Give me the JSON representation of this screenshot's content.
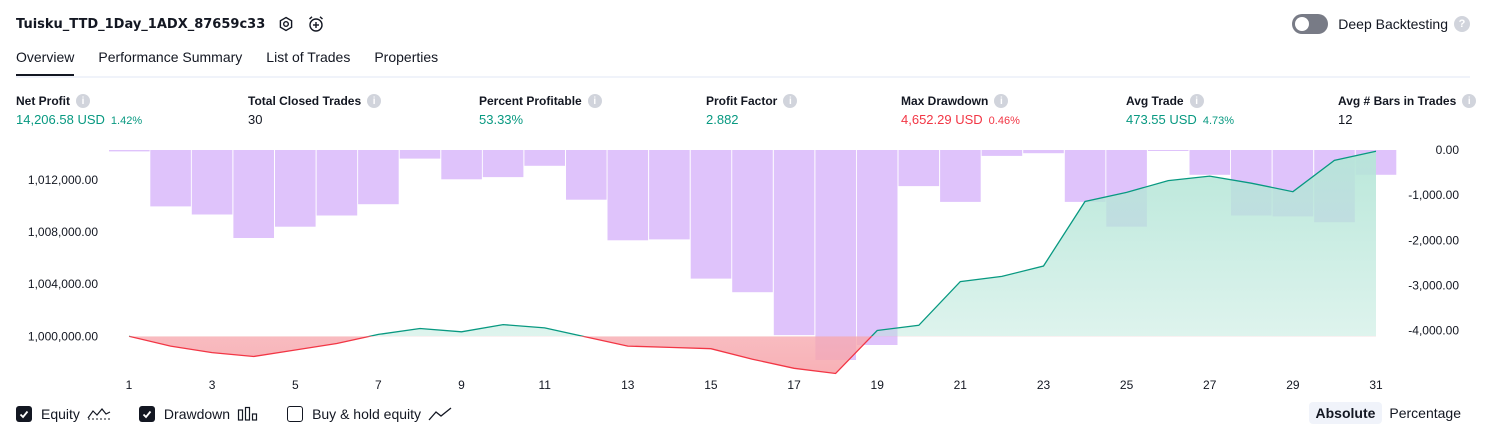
{
  "header": {
    "title": "Tuisku_TTD_1Day_1ADX_87659c33",
    "settings_icon": "gear-icon",
    "alert_icon": "alarm-clock-plus-icon"
  },
  "deep_backtesting": {
    "label": "Deep Backtesting",
    "enabled": false
  },
  "tabs": [
    {
      "label": "Overview",
      "active": true
    },
    {
      "label": "Performance Summary",
      "active": false
    },
    {
      "label": "List of Trades",
      "active": false
    },
    {
      "label": "Properties",
      "active": false
    }
  ],
  "metrics": {
    "net_profit": {
      "label": "Net Profit",
      "value": "14,206.58 USD",
      "pct": "1.42%"
    },
    "closed_trades": {
      "label": "Total Closed Trades",
      "value": "30"
    },
    "percent_profitable": {
      "label": "Percent Profitable",
      "value": "53.33%"
    },
    "profit_factor": {
      "label": "Profit Factor",
      "value": "2.882"
    },
    "max_drawdown": {
      "label": "Max Drawdown",
      "value": "4,652.29 USD",
      "pct": "0.46%"
    },
    "avg_trade": {
      "label": "Avg Trade",
      "value": "473.55 USD",
      "pct": "4.73%"
    },
    "avg_bars": {
      "label": "Avg # Bars in Trades",
      "value": "12"
    }
  },
  "colors": {
    "positive": "#089981",
    "negative": "#f23645",
    "drawdown_bar": "#d9b8fa",
    "equity_fill_positive": "#c8ebe1",
    "equity_fill_negative": "#fbd4d6"
  },
  "chart_data": {
    "type": "line",
    "x": [
      1,
      2,
      3,
      4,
      5,
      6,
      7,
      8,
      9,
      10,
      11,
      12,
      13,
      14,
      15,
      16,
      17,
      18,
      19,
      20,
      21,
      22,
      23,
      24,
      25,
      26,
      27,
      28,
      29,
      30,
      31
    ],
    "x_ticks": [
      "1",
      "3",
      "5",
      "7",
      "9",
      "11",
      "13",
      "15",
      "17",
      "19",
      "21",
      "23",
      "25",
      "27",
      "29",
      "31"
    ],
    "left_axis": {
      "ticks": [
        1000000,
        1004000,
        1008000,
        1012000
      ],
      "tick_labels": [
        "1,000,000.00",
        "1,004,000.00",
        "1,008,000.00",
        "1,012,000.00"
      ],
      "range": [
        996650,
        1014300
      ]
    },
    "right_axis": {
      "ticks": [
        0,
        -1000,
        -2000,
        -3000,
        -4000
      ],
      "tick_labels": [
        "0.00",
        "-1,000.00",
        "-2,000.00",
        "-3,000.00",
        "-4,000.00"
      ],
      "range": [
        -4652.29,
        0
      ]
    },
    "baseline": 1000000,
    "series": [
      {
        "name": "Equity",
        "type": "line-area",
        "axis": "left",
        "values": [
          1000000,
          999250,
          998750,
          998450,
          998950,
          999450,
          1000150,
          1000600,
          1000350,
          1000900,
          1000650,
          999950,
          999250,
          999150,
          999050,
          998250,
          997550,
          997150,
          1000450,
          1000850,
          1004200,
          1004600,
          1005400,
          1010350,
          1011050,
          1011950,
          1012300,
          1011750,
          1011100,
          1013500,
          1014200
        ]
      },
      {
        "name": "Drawdown",
        "type": "bar",
        "axis": "right",
        "values": [
          -30,
          -1250,
          -1430,
          -1950,
          -1700,
          -1450,
          -1200,
          -190,
          -650,
          -600,
          -350,
          -1100,
          -2000,
          -1980,
          -2850,
          -3150,
          -4100,
          -4652.29,
          -4320,
          -800,
          -1150,
          -130,
          -70,
          -1150,
          -1700,
          -20,
          -550,
          -1450,
          -1470,
          -1600,
          -550
        ]
      }
    ]
  },
  "legend": [
    {
      "label": "Equity",
      "checked": true,
      "icon": "equity-line-icon"
    },
    {
      "label": "Drawdown",
      "checked": true,
      "icon": "drawdown-bars-icon"
    },
    {
      "label": "Buy & hold equity",
      "checked": false,
      "icon": "trend-line-icon"
    }
  ],
  "mode_options": {
    "absolute": "Absolute",
    "percentage": "Percentage",
    "selected": "Absolute"
  }
}
